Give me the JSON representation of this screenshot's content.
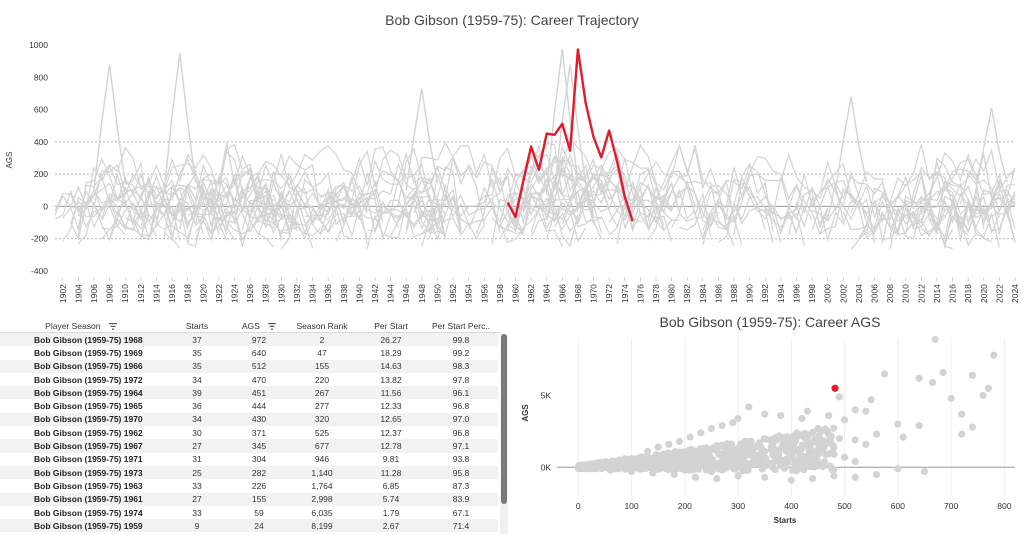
{
  "chart_data": [
    {
      "type": "line",
      "title": "Bob Gibson (1959-75): Career Trajectory",
      "ylabel": "AGS",
      "xlabel": "",
      "xlim": [
        1901,
        2024
      ],
      "ylim": [
        -400,
        1000
      ],
      "yticks": [
        "1000",
        "800",
        "600",
        "400",
        "200",
        "0",
        "-200",
        "-400"
      ],
      "xticks": [
        "1902",
        "1904",
        "1906",
        "1908",
        "1910",
        "1912",
        "1914",
        "1916",
        "1918",
        "1920",
        "1922",
        "1924",
        "1926",
        "1928",
        "1930",
        "1932",
        "1934",
        "1936",
        "1938",
        "1940",
        "1942",
        "1944",
        "1946",
        "1948",
        "1950",
        "1952",
        "1954",
        "1956",
        "1958",
        "1960",
        "1962",
        "1964",
        "1966",
        "1968",
        "1970",
        "1972",
        "1974",
        "1976",
        "1978",
        "1980",
        "1982",
        "1984",
        "1986",
        "1988",
        "1990",
        "1992",
        "1994",
        "1996",
        "1998",
        "2000",
        "2002",
        "2004",
        "2006",
        "2008",
        "2010",
        "2012",
        "2014",
        "2016",
        "2018",
        "2020",
        "2022",
        "2024"
      ],
      "reference_lines": [
        400,
        200,
        0,
        -200
      ],
      "series": [
        {
          "name": "Bob Gibson (1959-75)",
          "color": "#e31a2d",
          "x": [
            1959,
            1960,
            1961,
            1962,
            1963,
            1964,
            1965,
            1966,
            1967,
            1968,
            1969,
            1970,
            1971,
            1972,
            1973,
            1974,
            1975
          ],
          "y": [
            24,
            -65,
            155,
            371,
            226,
            451,
            444,
            512,
            345,
            972,
            640,
            430,
            304,
            470,
            282,
            59,
            -92
          ]
        }
      ],
      "background_series_color": "#d3d3d3"
    },
    {
      "type": "table",
      "columns": [
        "Player Season",
        "Starts",
        "AGS",
        "Season Rank",
        "Per Start",
        "Per Start Perc.."
      ],
      "rows": [
        [
          "Bob Gibson (1959-75) 1968",
          "37",
          "972",
          "2",
          "26.27",
          "99.8"
        ],
        [
          "Bob Gibson (1959-75) 1969",
          "35",
          "640",
          "47",
          "18.29",
          "99.2"
        ],
        [
          "Bob Gibson (1959-75) 1966",
          "35",
          "512",
          "155",
          "14.63",
          "98.3"
        ],
        [
          "Bob Gibson (1959-75) 1972",
          "34",
          "470",
          "220",
          "13.82",
          "97.8"
        ],
        [
          "Bob Gibson (1959-75) 1964",
          "39",
          "451",
          "267",
          "11.56",
          "96.1"
        ],
        [
          "Bob Gibson (1959-75) 1965",
          "36",
          "444",
          "277",
          "12.33",
          "96.8"
        ],
        [
          "Bob Gibson (1959-75) 1970",
          "34",
          "430",
          "320",
          "12.65",
          "97.0"
        ],
        [
          "Bob Gibson (1959-75) 1962",
          "30",
          "371",
          "525",
          "12.37",
          "96.8"
        ],
        [
          "Bob Gibson (1959-75) 1967",
          "27",
          "345",
          "677",
          "12.78",
          "97.1"
        ],
        [
          "Bob Gibson (1959-75) 1971",
          "31",
          "304",
          "946",
          "9.81",
          "93.8"
        ],
        [
          "Bob Gibson (1959-75) 1973",
          "25",
          "282",
          "1,140",
          "11.28",
          "95.8"
        ],
        [
          "Bob Gibson (1959-75) 1963",
          "33",
          "226",
          "1,764",
          "6.85",
          "87.3"
        ],
        [
          "Bob Gibson (1959-75) 1961",
          "27",
          "155",
          "2,998",
          "5.74",
          "83.9"
        ],
        [
          "Bob Gibson (1959-75) 1974",
          "33",
          "59",
          "6,035",
          "1.79",
          "67.1"
        ],
        [
          "Bob Gibson (1959-75) 1959",
          "9",
          "24",
          "8,199",
          "2.67",
          "71.4"
        ]
      ]
    },
    {
      "type": "scatter",
      "title": "Bob Gibson (1959-75): Career AGS",
      "xlabel": "Starts",
      "ylabel": "AGS",
      "xlim": [
        -40,
        820
      ],
      "ylim": [
        -2000,
        9000
      ],
      "xticks": [
        "0",
        "100",
        "200",
        "300",
        "400",
        "500",
        "600",
        "700",
        "800"
      ],
      "yticks": [
        "0K",
        "5K"
      ],
      "highlight": {
        "name": "Bob Gibson (1959-75)",
        "x": 482,
        "y": 5500,
        "color": "#e31a2d"
      },
      "background_points": [
        [
          670,
          8900
        ],
        [
          780,
          7800
        ],
        [
          575,
          6500
        ],
        [
          640,
          6200
        ],
        [
          665,
          5900
        ],
        [
          685,
          6600
        ],
        [
          740,
          6400
        ],
        [
          760,
          5000
        ],
        [
          770,
          5500
        ],
        [
          700,
          4800
        ],
        [
          720,
          3700
        ],
        [
          740,
          2800
        ],
        [
          720,
          2300
        ],
        [
          550,
          4700
        ],
        [
          490,
          4900
        ],
        [
          520,
          4000
        ],
        [
          540,
          3900
        ],
        [
          600,
          3000
        ],
        [
          640,
          2900
        ],
        [
          560,
          2300
        ],
        [
          610,
          2100
        ],
        [
          470,
          3600
        ],
        [
          500,
          3300
        ],
        [
          430,
          3900
        ],
        [
          420,
          3400
        ],
        [
          320,
          4200
        ],
        [
          350,
          3700
        ],
        [
          380,
          3600
        ],
        [
          300,
          3400
        ],
        [
          290,
          3100
        ],
        [
          270,
          2900
        ],
        [
          250,
          2700
        ],
        [
          230,
          2400
        ],
        [
          210,
          2100
        ],
        [
          190,
          1800
        ],
        [
          170,
          1600
        ],
        [
          150,
          1400
        ],
        [
          130,
          1100
        ],
        [
          450,
          2700
        ],
        [
          470,
          2300
        ],
        [
          490,
          2000
        ],
        [
          520,
          1900
        ],
        [
          540,
          1600
        ],
        [
          410,
          2400
        ],
        [
          390,
          2100
        ],
        [
          360,
          1900
        ],
        [
          340,
          1700
        ],
        [
          320,
          1500
        ],
        [
          300,
          1300
        ],
        [
          280,
          1200
        ],
        [
          460,
          1300
        ],
        [
          480,
          900
        ],
        [
          500,
          700
        ],
        [
          520,
          400
        ],
        [
          440,
          1100
        ],
        [
          420,
          800
        ],
        [
          400,
          600
        ],
        [
          380,
          500
        ],
        [
          360,
          300
        ],
        [
          340,
          200
        ],
        [
          320,
          100
        ],
        [
          300,
          0
        ],
        [
          600,
          -100
        ],
        [
          650,
          -300
        ],
        [
          560,
          -500
        ],
        [
          520,
          -700
        ],
        [
          480,
          -600
        ],
        [
          440,
          -800
        ],
        [
          400,
          -900
        ],
        [
          350,
          -700
        ],
        [
          300,
          -600
        ],
        [
          260,
          -800
        ],
        [
          220,
          -700
        ],
        [
          180,
          -500
        ],
        [
          140,
          -400
        ],
        [
          100,
          -300
        ],
        [
          60,
          -200
        ],
        [
          30,
          -100
        ],
        [
          10,
          0
        ],
        [
          20,
          200
        ],
        [
          40,
          300
        ],
        [
          70,
          400
        ],
        [
          100,
          600
        ],
        [
          120,
          700
        ],
        [
          160,
          900
        ],
        [
          200,
          1000
        ],
        [
          240,
          1200
        ],
        [
          260,
          1500
        ],
        [
          80,
          100
        ],
        [
          110,
          200
        ],
        [
          150,
          300
        ],
        [
          190,
          500
        ],
        [
          230,
          600
        ],
        [
          270,
          800
        ],
        [
          310,
          900
        ],
        [
          350,
          1100
        ],
        [
          390,
          1300
        ],
        [
          430,
          1500
        ],
        [
          470,
          1700
        ],
        [
          150,
          -100
        ],
        [
          200,
          -200
        ],
        [
          250,
          -300
        ]
      ]
    }
  ]
}
